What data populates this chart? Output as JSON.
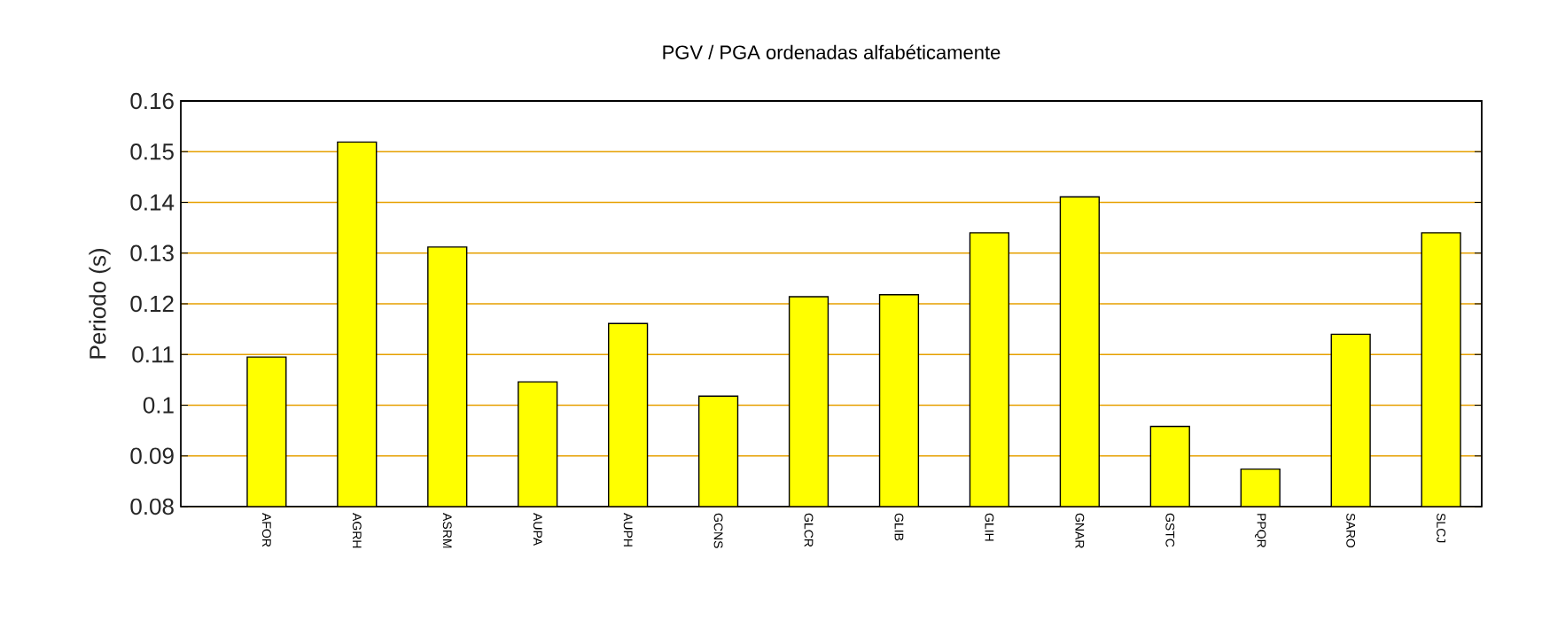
{
  "chart_data": {
    "type": "bar",
    "title": "PGV / PGA ordenadas alfabéticamente",
    "ylabel": "Periodo (s)",
    "categories": [
      "AFOR",
      "AGRH",
      "ASRM",
      "AUPA",
      "AUPH",
      "GCNS",
      "GLCR",
      "GLIB",
      "GLIH",
      "GNAR",
      "GSTC",
      "PPQR",
      "SARO",
      "SLCJ"
    ],
    "values": [
      0.1095,
      0.1519,
      0.1312,
      0.1046,
      0.1161,
      0.1018,
      0.1214,
      0.1218,
      0.134,
      0.1411,
      0.0958,
      0.0874,
      0.114,
      0.134
    ],
    "color": "#ffff00",
    "ylim": [
      0.08,
      0.16
    ],
    "yticks": [
      0.08,
      0.09,
      0.1,
      0.11,
      0.12,
      0.13,
      0.14,
      0.15,
      0.16
    ],
    "grid": "y"
  }
}
